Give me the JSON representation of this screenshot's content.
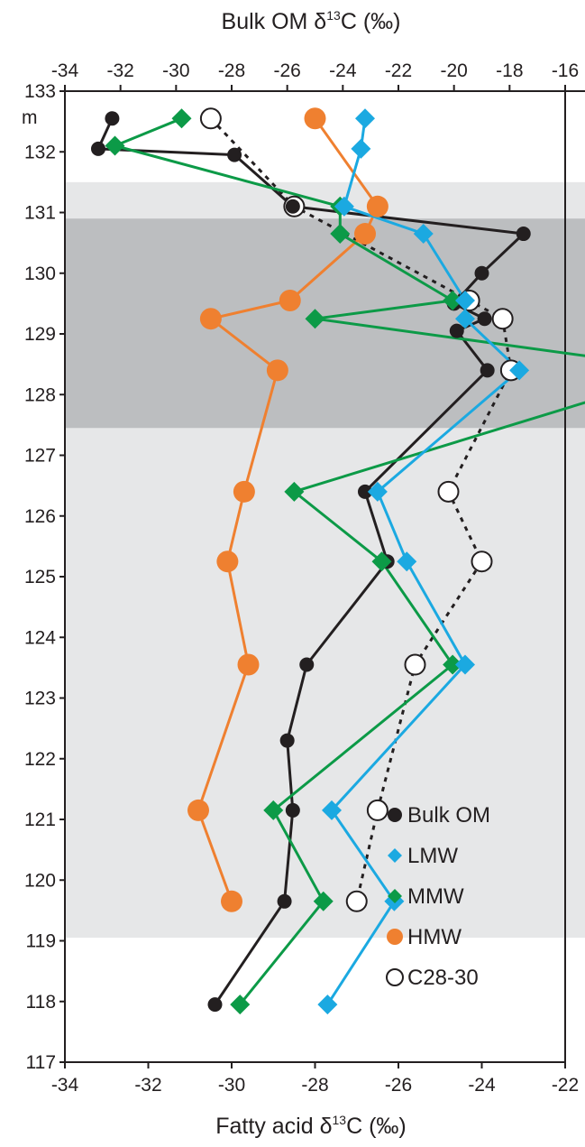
{
  "chart_data": {
    "type": "line",
    "x_axis_bottom": {
      "label": "Fatty acid δ13C (‰)",
      "label_main": "Fatty acid δ",
      "label_sup": "13",
      "label_tail": "C  (‰)",
      "range": [
        -34,
        -22
      ],
      "ticks": [
        -34,
        -32,
        -30,
        -28,
        -26,
        -24,
        -22
      ],
      "tick_labels": [
        "-34",
        "-32",
        "-30",
        "-28",
        "-26",
        "-24",
        "-22"
      ]
    },
    "x_axis_top": {
      "label": "Bulk OM δ13C (‰)",
      "label_main": "Bulk OM δ",
      "label_sup": "13",
      "label_tail": "C (‰)",
      "range": [
        -34,
        -16
      ],
      "ticks": [
        -34,
        -32,
        -30,
        -28,
        -26,
        -24,
        -22,
        -20,
        -18,
        -16
      ],
      "tick_labels": [
        "-34",
        "-32",
        "-30",
        "-28",
        "-26",
        "-24",
        "-22",
        "-20",
        "-18",
        "-16"
      ]
    },
    "y_axis": {
      "label": "m",
      "range": [
        117,
        133
      ],
      "ticks": [
        117,
        118,
        119,
        120,
        121,
        122,
        123,
        124,
        125,
        126,
        127,
        128,
        129,
        130,
        131,
        132,
        133
      ],
      "tick_labels": [
        "117",
        "118",
        "119",
        "120",
        "121",
        "122",
        "123",
        "124",
        "125",
        "126",
        "127",
        "128",
        "129",
        "130",
        "131",
        "132",
        "133"
      ]
    },
    "bands": [
      {
        "name": "light",
        "from": 119.05,
        "to": 131.5,
        "color": "#e6e7e8"
      },
      {
        "name": "dark",
        "from": 127.45,
        "to": 130.9,
        "color": "#bcbec0"
      }
    ],
    "series": [
      {
        "name": "Bulk OM",
        "axis": "top",
        "marker": "circle-filled",
        "color": "#231f20",
        "line": "solid",
        "line_color": "#231f20",
        "points": [
          {
            "x": -32.3,
            "y": 132.55
          },
          {
            "x": -32.8,
            "y": 132.05
          },
          {
            "x": -27.9,
            "y": 131.95
          },
          {
            "x": -25.8,
            "y": 131.1
          },
          {
            "x": -17.5,
            "y": 130.65
          },
          {
            "x": -19.0,
            "y": 130.0
          },
          {
            "x": -20.0,
            "y": 129.5
          },
          {
            "x": -18.9,
            "y": 129.25
          },
          {
            "x": -19.9,
            "y": 129.05
          },
          {
            "x": -18.8,
            "y": 128.4
          },
          {
            "x": -23.2,
            "y": 126.4
          },
          {
            "x": -22.4,
            "y": 125.25
          },
          {
            "x": -25.3,
            "y": 123.55
          },
          {
            "x": -26.0,
            "y": 122.3
          },
          {
            "x": -25.8,
            "y": 121.15
          },
          {
            "x": -26.1,
            "y": 119.65
          },
          {
            "x": -28.6,
            "y": 117.95
          }
        ]
      },
      {
        "name": "LMW",
        "axis": "bottom",
        "marker": "diamond",
        "color": "#1ba9e1",
        "line": "solid",
        "line_color": "#1ba9e1",
        "points": [
          {
            "x": -26.8,
            "y": 132.55
          },
          {
            "x": -26.9,
            "y": 132.05
          },
          {
            "x": -27.3,
            "y": 131.1
          },
          {
            "x": -25.4,
            "y": 130.65
          },
          {
            "x": -24.4,
            "y": 129.55
          },
          {
            "x": -24.4,
            "y": 129.25
          },
          {
            "x": -23.1,
            "y": 128.4
          },
          {
            "x": -26.5,
            "y": 126.4
          },
          {
            "x": -25.8,
            "y": 125.25
          },
          {
            "x": -24.4,
            "y": 123.55
          },
          {
            "x": -27.6,
            "y": 121.15
          },
          {
            "x": -26.1,
            "y": 119.65
          },
          {
            "x": -27.7,
            "y": 117.95
          }
        ]
      },
      {
        "name": "MMW",
        "axis": "bottom",
        "marker": "diamond",
        "color": "#0c9a47",
        "line": "solid",
        "line_color": "#0c9a47",
        "points": [
          {
            "x": -31.2,
            "y": 132.55
          },
          {
            "x": -32.8,
            "y": 132.1
          },
          {
            "x": -27.4,
            "y": 131.1
          },
          {
            "x": -27.4,
            "y": 130.65
          },
          {
            "x": -24.7,
            "y": 129.55
          },
          {
            "x": -28.0,
            "y": 129.25
          },
          {
            "x": -19.0,
            "y": 128.4
          },
          {
            "x": -28.5,
            "y": 126.4
          },
          {
            "x": -26.4,
            "y": 125.25
          },
          {
            "x": -24.7,
            "y": 123.55
          },
          {
            "x": -29.0,
            "y": 121.15
          },
          {
            "x": -27.8,
            "y": 119.65
          },
          {
            "x": -29.8,
            "y": 117.95
          }
        ]
      },
      {
        "name": "HMW",
        "axis": "bottom",
        "marker": "circle-filled-large",
        "color": "#ef8030",
        "line": "solid",
        "line_color": "#ef8030",
        "points": [
          {
            "x": -28.0,
            "y": 132.55
          },
          {
            "x": -26.5,
            "y": 131.1
          },
          {
            "x": -26.8,
            "y": 130.65
          },
          {
            "x": -28.6,
            "y": 129.55
          },
          {
            "x": -30.5,
            "y": 129.25
          },
          {
            "x": -28.9,
            "y": 128.4
          },
          {
            "x": -29.7,
            "y": 126.4
          },
          {
            "x": -30.1,
            "y": 125.25
          },
          {
            "x": -29.6,
            "y": 123.55
          },
          {
            "x": -30.8,
            "y": 121.15
          },
          {
            "x": -30.0,
            "y": 119.65
          }
        ]
      },
      {
        "name": "C28-30",
        "axis": "bottom",
        "marker": "circle-open",
        "color": "#231f20",
        "line": "dotted",
        "line_color": "#231f20",
        "points": [
          {
            "x": -30.5,
            "y": 132.55
          },
          {
            "x": -28.5,
            "y": 131.1
          },
          {
            "x": -24.3,
            "y": 129.55
          },
          {
            "x": -23.5,
            "y": 129.25
          },
          {
            "x": -23.3,
            "y": 128.4
          },
          {
            "x": -24.8,
            "y": 126.4
          },
          {
            "x": -24.0,
            "y": 125.25
          },
          {
            "x": -25.6,
            "y": 123.55
          },
          {
            "x": -26.5,
            "y": 121.15
          },
          {
            "x": -27.0,
            "y": 119.65
          }
        ]
      }
    ],
    "legend": {
      "placement": "bottom-right",
      "entries": [
        "Bulk OM",
        "LMW",
        "MMW",
        "HMW",
        "C28-30"
      ]
    },
    "grid": false
  }
}
